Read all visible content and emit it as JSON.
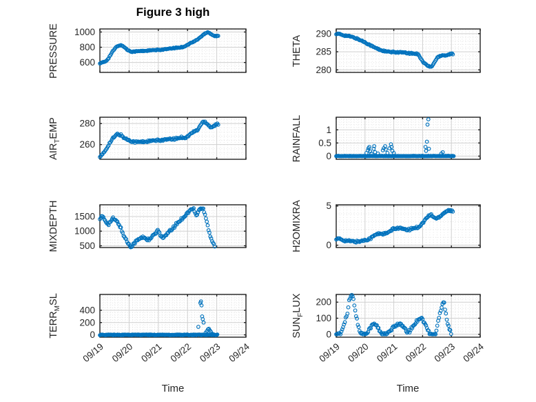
{
  "figure": {
    "title": "Figure 3 high",
    "xlabel": "Time",
    "marker_color": "#0072BD",
    "axis_color": "#1f1f1f",
    "grid_color": "#cfcfcf",
    "minor_grid_color": "#dedede",
    "text_color": "#262626"
  },
  "x_axis": {
    "tick_labels": [
      "09/19",
      "09/20",
      "09/21",
      "09/22",
      "09/23",
      "09/24"
    ],
    "range_days": [
      0,
      5
    ]
  },
  "chart_data": [
    {
      "type": "scatter",
      "name": "pressure",
      "ylabel": {
        "pre": "PRESSURE",
        "sub": "",
        "post": ""
      },
      "row": 0,
      "col": 0,
      "yticks": [
        600,
        800,
        1000
      ],
      "ylim": [
        470,
        1040
      ],
      "yminor": 40,
      "series": [
        {
          "dense": true,
          "step": 0.03,
          "jitter": 6,
          "x": [
            0,
            0.1,
            0.2,
            0.3,
            0.42,
            0.55,
            0.68,
            0.8,
            0.95,
            1.1,
            1.3,
            1.5,
            1.7,
            1.9,
            2.1,
            2.3,
            2.5,
            2.7,
            2.85,
            3.0,
            3.1,
            3.2,
            3.35,
            3.5,
            3.6,
            3.7,
            3.8,
            3.9,
            4.0,
            4.05
          ],
          "y": [
            592,
            600,
            615,
            660,
            735,
            800,
            828,
            815,
            762,
            742,
            748,
            752,
            758,
            762,
            768,
            775,
            788,
            795,
            805,
            830,
            855,
            870,
            905,
            950,
            985,
            1000,
            975,
            950,
            945,
            950
          ]
        }
      ]
    },
    {
      "type": "scatter",
      "name": "theta",
      "ylabel": {
        "pre": "THETA",
        "sub": "",
        "post": ""
      },
      "row": 0,
      "col": 1,
      "yticks": [
        280,
        285,
        290
      ],
      "ylim": [
        279.3,
        291.3
      ],
      "yminor": 1,
      "series": [
        {
          "dense": true,
          "step": 0.03,
          "jitter": 0.18,
          "x": [
            0,
            0.15,
            0.3,
            0.5,
            0.7,
            0.9,
            1.1,
            1.3,
            1.5,
            1.7,
            1.9,
            2.1,
            2.3,
            2.5,
            2.7,
            2.85,
            3.0,
            3.1,
            3.2,
            3.3,
            3.4,
            3.5,
            3.6,
            3.7,
            3.8,
            3.9,
            4.0,
            4.05
          ],
          "y": [
            290,
            289.8,
            289.5,
            289.2,
            288.7,
            288,
            287.2,
            286.3,
            285.6,
            285.1,
            284.9,
            284.9,
            284.8,
            284.6,
            284.5,
            284.4,
            282.3,
            281.6,
            281,
            280.8,
            281.9,
            283.3,
            283.9,
            284.1,
            284,
            284.2,
            284.5,
            284.3
          ]
        }
      ]
    },
    {
      "type": "scatter",
      "name": "air-temp",
      "ylabel": {
        "pre": "AIR",
        "sub": "T",
        "post": "EMP"
      },
      "row": 1,
      "col": 0,
      "yticks": [
        260,
        280
      ],
      "ylim": [
        246,
        286
      ],
      "yminor": 4,
      "series": [
        {
          "dense": true,
          "step": 0.03,
          "jitter": 0.9,
          "x": [
            0,
            0.08,
            0.18,
            0.3,
            0.45,
            0.6,
            0.72,
            0.85,
            1.0,
            1.2,
            1.4,
            1.6,
            1.8,
            2.0,
            2.2,
            2.4,
            2.6,
            2.8,
            2.95,
            3.1,
            3.2,
            3.35,
            3.5,
            3.6,
            3.7,
            3.8,
            3.9,
            4.0,
            4.05
          ],
          "y": [
            249,
            250,
            254,
            260,
            266,
            270,
            269,
            266,
            264,
            262.5,
            262.5,
            263,
            263.5,
            264,
            264.5,
            265,
            265.5,
            267,
            266.5,
            270,
            272,
            274,
            281,
            282,
            279,
            276.5,
            277.5,
            279.5,
            279
          ]
        }
      ]
    },
    {
      "type": "scatter",
      "name": "rainfall",
      "ylabel": {
        "pre": "RAINFALL",
        "sub": "",
        "post": ""
      },
      "row": 1,
      "col": 1,
      "yticks": [
        0,
        0.5,
        1
      ],
      "ylim": [
        -0.12,
        1.48
      ],
      "yminor": 0.1,
      "series": [
        {
          "dense": true,
          "step": 0.02,
          "jitter": 0.012,
          "clamp_min": 0,
          "x": [
            0,
            4.08
          ],
          "y": [
            0,
            0
          ]
        },
        {
          "dense": false,
          "x": [
            1.05,
            1.1,
            1.12,
            1.15,
            1.18,
            1.22,
            1.3,
            1.32,
            1.35,
            1.45,
            1.62,
            1.65,
            1.7,
            1.72,
            1.78,
            1.85,
            1.9,
            1.92,
            1.95,
            2.0,
            3.1,
            3.12,
            3.15,
            3.17,
            3.2,
            3.22,
            3.65,
            3.7
          ],
          "y": [
            0.12,
            0.22,
            0.3,
            0.35,
            0.18,
            0.1,
            0.28,
            0.38,
            0.15,
            0.1,
            0.22,
            0.3,
            0.38,
            0.25,
            0.12,
            0.3,
            0.45,
            0.35,
            0.2,
            0.12,
            0.35,
            0.2,
            0.55,
            1.2,
            1.4,
            0.28,
            0.1,
            0.15
          ]
        }
      ]
    },
    {
      "type": "scatter",
      "name": "mixdepth",
      "ylabel": {
        "pre": "MIXDEPTH",
        "sub": "",
        "post": ""
      },
      "row": 2,
      "col": 0,
      "yticks": [
        500,
        1000,
        1500
      ],
      "ylim": [
        440,
        1900
      ],
      "yminor": 100,
      "series": [
        {
          "dense": true,
          "step": 0.03,
          "jitter": 45,
          "x": [
            0,
            0.08,
            0.15,
            0.22,
            0.3,
            0.38,
            0.45,
            0.52,
            0.6,
            0.68,
            0.75,
            0.82,
            0.9,
            0.98,
            1.05,
            1.12,
            1.2,
            1.3,
            1.4,
            1.5,
            1.6,
            1.7,
            1.8,
            1.9,
            2.0,
            2.1,
            2.2,
            2.3,
            2.4,
            2.5,
            2.6,
            2.7,
            2.8,
            2.9,
            3.0,
            3.1,
            3.2,
            3.3,
            3.38,
            3.45,
            3.55,
            3.65,
            3.72,
            3.8,
            3.88,
            3.95
          ],
          "y": [
            1450,
            1500,
            1400,
            1300,
            1250,
            1350,
            1430,
            1380,
            1300,
            1200,
            1000,
            850,
            700,
            560,
            480,
            530,
            620,
            700,
            760,
            800,
            730,
            700,
            820,
            920,
            1020,
            830,
            780,
            900,
            1000,
            1100,
            1220,
            1320,
            1420,
            1520,
            1620,
            1720,
            1780,
            1520,
            1700,
            1780,
            1750,
            1400,
            1050,
            780,
            580,
            470
          ]
        }
      ]
    },
    {
      "type": "scatter",
      "name": "h2omixra",
      "ylabel": {
        "pre": "H2OMIXRA",
        "sub": "",
        "post": ""
      },
      "row": 2,
      "col": 1,
      "yticks": [
        0,
        5
      ],
      "ylim": [
        -0.3,
        5.15
      ],
      "yminor": 1,
      "series": [
        {
          "dense": true,
          "step": 0.03,
          "jitter": 0.13,
          "x": [
            0,
            0.15,
            0.3,
            0.5,
            0.7,
            0.9,
            1.05,
            1.2,
            1.35,
            1.5,
            1.65,
            1.8,
            1.95,
            2.1,
            2.25,
            2.4,
            2.55,
            2.7,
            2.85,
            3.0,
            3.1,
            3.2,
            3.3,
            3.4,
            3.5,
            3.6,
            3.7,
            3.8,
            3.9,
            4.0,
            4.05
          ],
          "y": [
            0.85,
            0.75,
            0.6,
            0.5,
            0.45,
            0.55,
            0.7,
            0.9,
            1.3,
            1.5,
            1.45,
            1.55,
            2.0,
            2.2,
            2.15,
            1.95,
            2.0,
            2.2,
            2.3,
            2.8,
            3.3,
            3.7,
            3.9,
            3.5,
            3.4,
            3.7,
            4.0,
            4.3,
            4.45,
            4.35,
            4.3
          ]
        }
      ]
    },
    {
      "type": "scatter",
      "name": "terr-msl",
      "ylabel": {
        "pre": "TERR",
        "sub": "M",
        "post": "SL"
      },
      "row": 3,
      "col": 0,
      "yticks": [
        0,
        200,
        400
      ],
      "ylim": [
        -38,
        658
      ],
      "yminor": 40,
      "series": [
        {
          "dense": true,
          "step": 0.02,
          "jitter": 6,
          "x": [
            0,
            4.02
          ],
          "y": [
            0,
            0
          ]
        },
        {
          "dense": false,
          "x": [
            3.37,
            3.44,
            3.46,
            3.48,
            3.5,
            3.52,
            3.55,
            3.62,
            3.66,
            3.7,
            3.73,
            3.76,
            3.8,
            3.84
          ],
          "y": [
            130,
            520,
            545,
            480,
            300,
            255,
            200,
            35,
            60,
            90,
            100,
            75,
            50,
            20
          ]
        }
      ]
    },
    {
      "type": "scatter",
      "name": "sun-flux",
      "ylabel": {
        "pre": "SUN",
        "sub": "F",
        "post": "LUX"
      },
      "row": 3,
      "col": 1,
      "yticks": [
        0,
        100,
        200
      ],
      "ylim": [
        -18,
        248
      ],
      "yminor": 20,
      "series": [
        {
          "dense": true,
          "step": 0.03,
          "jitter": 9,
          "clamp_min": 0,
          "x": [
            0,
            0.15,
            0.25,
            0.32,
            0.4,
            0.45,
            0.5,
            0.55,
            0.6,
            0.68,
            0.75,
            0.85,
            1.0,
            1.1,
            1.2,
            1.3,
            1.4,
            1.5,
            1.6,
            1.75,
            1.85,
            1.95,
            2.05,
            2.15,
            2.25,
            2.35,
            2.45,
            2.55,
            2.65,
            2.75,
            2.85,
            2.95,
            3.05,
            3.15,
            3.25,
            3.35,
            3.45,
            3.52,
            3.58,
            3.64,
            3.7,
            3.74,
            3.78,
            3.82,
            3.86,
            3.92,
            4.0
          ],
          "y": [
            0,
            0,
            55,
            95,
            135,
            205,
            235,
            242,
            215,
            130,
            60,
            5,
            0,
            20,
            45,
            65,
            55,
            25,
            0,
            0,
            15,
            35,
            55,
            65,
            60,
            40,
            15,
            20,
            45,
            70,
            95,
            105,
            75,
            40,
            0,
            0,
            0,
            60,
            120,
            160,
            195,
            210,
            160,
            120,
            70,
            40,
            0
          ]
        }
      ]
    }
  ]
}
